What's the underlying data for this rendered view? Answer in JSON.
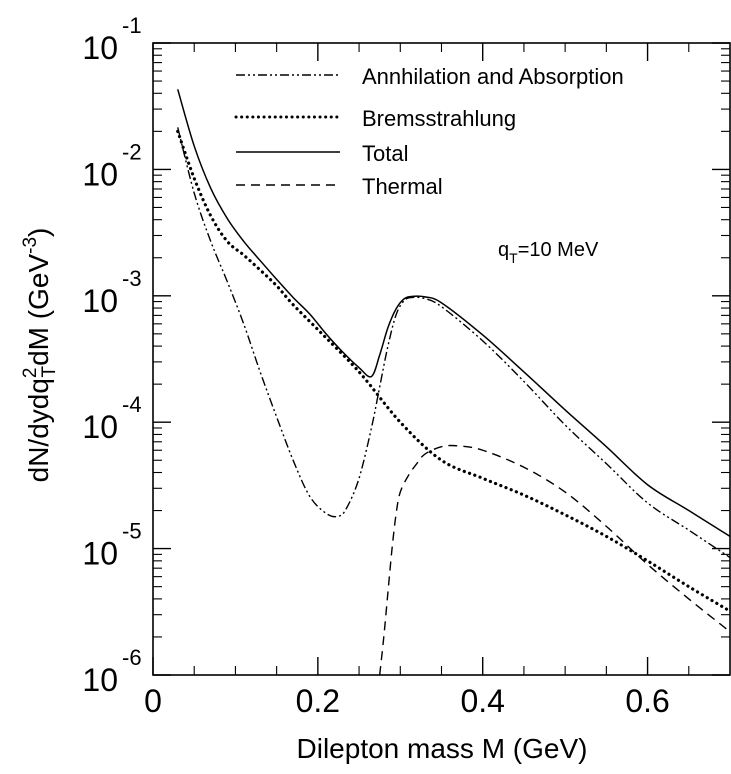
{
  "chart_data": {
    "type": "line",
    "xlabel": "Dilepton mass M (GeV)",
    "ylabel": {
      "base": "dN/dydq",
      "sup2": "2",
      "sub": "T",
      "rest": "dM (GeV",
      "unit_exp": "-3",
      "close": ")"
    },
    "xlim": [
      0,
      0.7
    ],
    "ylim": [
      1e-06,
      0.1
    ],
    "yscale": "log",
    "grid": false,
    "legend_position": "top-right",
    "x_ticks": [
      "0",
      "0.2",
      "0.4",
      "0.6"
    ],
    "x_tick_values": [
      0,
      0.2,
      0.4,
      0.6
    ],
    "y_ticks": [
      {
        "base": "10",
        "exp": "-1",
        "value": 0.1
      },
      {
        "base": "10",
        "exp": "-2",
        "value": 0.01
      },
      {
        "base": "10",
        "exp": "-3",
        "value": 0.001
      },
      {
        "base": "10",
        "exp": "-4",
        "value": 0.0001
      },
      {
        "base": "10",
        "exp": "-5",
        "value": 1e-05
      },
      {
        "base": "10",
        "exp": "-6",
        "value": 1e-06
      }
    ],
    "annotation": {
      "prefix": "q",
      "sub": "T",
      "suffix": "=10 MeV"
    },
    "series": [
      {
        "name": "Annhilation and Absorption",
        "style": "dashdot",
        "color": "#000000",
        "x": [
          0.03,
          0.05,
          0.07,
          0.09,
          0.11,
          0.13,
          0.15,
          0.17,
          0.19,
          0.21,
          0.225,
          0.235,
          0.25,
          0.265,
          0.275,
          0.285,
          0.295,
          0.305,
          0.315,
          0.33,
          0.35,
          0.4,
          0.45,
          0.5,
          0.55,
          0.6,
          0.65,
          0.7
        ],
        "y": [
          0.0215,
          0.0065,
          0.0027,
          0.0013,
          0.0006,
          0.00025,
          0.00011,
          5e-05,
          2.6e-05,
          1.9e-05,
          1.8e-05,
          2.1e-05,
          3.6e-05,
          9e-05,
          0.00019,
          0.0004,
          0.00071,
          0.00092,
          0.00097,
          0.00095,
          0.00082,
          0.00044,
          0.00021,
          9.5e-05,
          4.7e-05,
          2.3e-05,
          1.4e-05,
          8.5e-06
        ]
      },
      {
        "name": "Bremsstrahlung",
        "style": "dotted",
        "color": "#000000",
        "x": [
          0.03,
          0.05,
          0.07,
          0.09,
          0.11,
          0.13,
          0.15,
          0.17,
          0.2,
          0.25,
          0.3,
          0.35,
          0.4,
          0.45,
          0.5,
          0.55,
          0.6,
          0.65,
          0.7
        ],
        "y": [
          0.02,
          0.0085,
          0.0043,
          0.0027,
          0.0021,
          0.0016,
          0.0012,
          0.00085,
          0.00054,
          0.00025,
          0.0001,
          5e-05,
          3.6e-05,
          2.65e-05,
          1.85e-05,
          1.25e-05,
          8e-06,
          5e-06,
          3.2e-06
        ]
      },
      {
        "name": "Total",
        "style": "solid",
        "color": "#000000",
        "x": [
          0.03,
          0.05,
          0.07,
          0.09,
          0.11,
          0.13,
          0.15,
          0.17,
          0.19,
          0.21,
          0.23,
          0.25,
          0.265,
          0.275,
          0.285,
          0.295,
          0.305,
          0.315,
          0.33,
          0.35,
          0.4,
          0.45,
          0.5,
          0.55,
          0.6,
          0.65,
          0.7
        ],
        "y": [
          0.043,
          0.0153,
          0.0071,
          0.0041,
          0.0027,
          0.0019,
          0.00135,
          0.00097,
          0.00072,
          0.0005,
          0.00036,
          0.00027,
          0.00023,
          0.00034,
          0.00056,
          0.00079,
          0.00095,
          0.00099,
          0.00098,
          0.00088,
          0.00049,
          0.00025,
          0.000125,
          6.4e-05,
          3.2e-05,
          2e-05,
          1.25e-05
        ]
      },
      {
        "name": "Thermal",
        "style": "dashed",
        "color": "#000000",
        "x": [
          0.275,
          0.28,
          0.285,
          0.29,
          0.295,
          0.3,
          0.31,
          0.32,
          0.33,
          0.35,
          0.37,
          0.4,
          0.45,
          0.5,
          0.55,
          0.6,
          0.65,
          0.7
        ],
        "y": [
          1e-06,
          2e-06,
          4.5e-06,
          1e-05,
          1.9e-05,
          2.8e-05,
          3.8e-05,
          4.7e-05,
          5.6e-05,
          6.4e-05,
          6.5e-05,
          6e-05,
          4.4e-05,
          2.8e-05,
          1.5e-05,
          7.5e-06,
          4e-06,
          2.2e-06
        ]
      }
    ]
  }
}
